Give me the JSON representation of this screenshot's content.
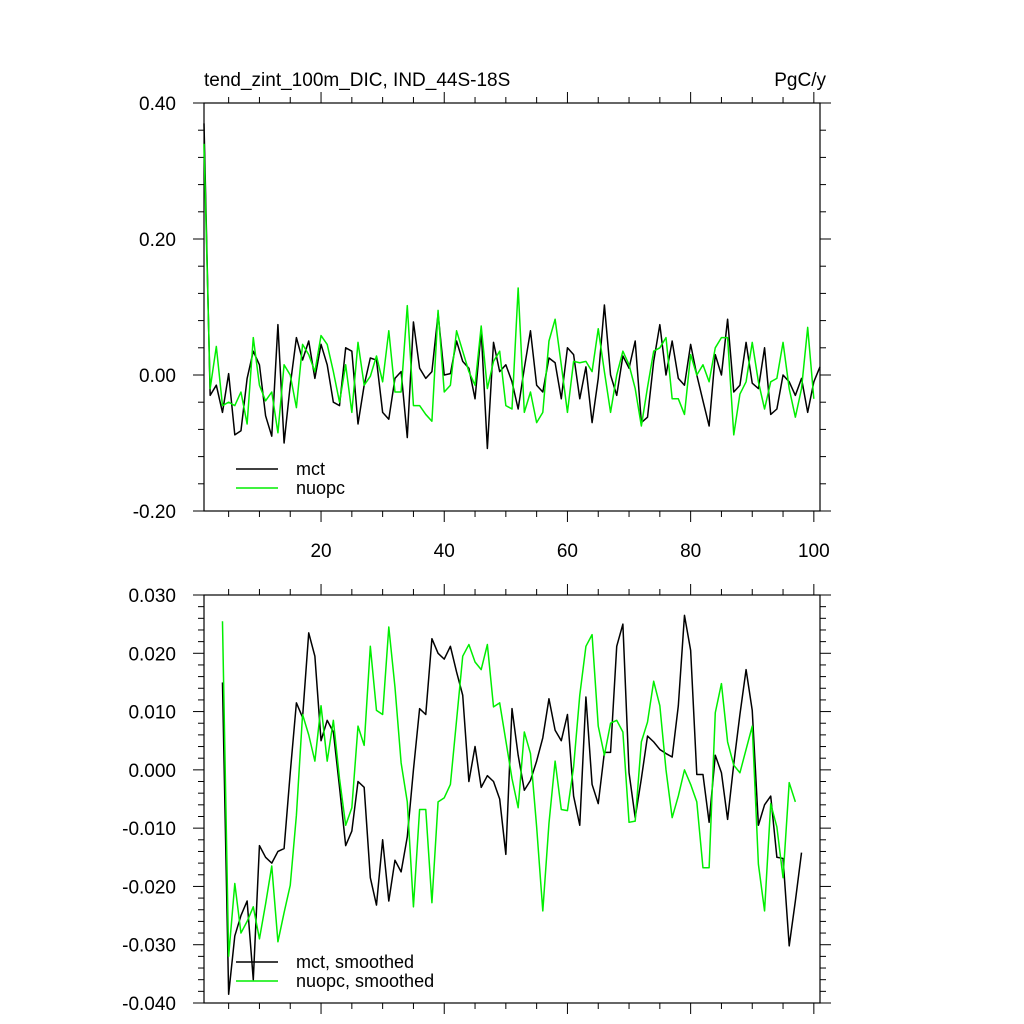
{
  "chart_data": [
    {
      "type": "line",
      "title_left": "tend_zint_100m_DIC, IND_44S-18S",
      "title_right": "PgC/y",
      "xlim": [
        1,
        101
      ],
      "ylim": [
        -0.2,
        0.4
      ],
      "x_ticks": [
        20,
        40,
        60,
        80,
        100
      ],
      "x_tick_labels": [
        "20",
        "40",
        "60",
        "80",
        "100"
      ],
      "y_ticks": [
        -0.2,
        0,
        0.2,
        0.4
      ],
      "y_tick_labels": [
        "-0.20",
        "0.00",
        "0.20",
        "0.40"
      ],
      "legend_position": "lower-left",
      "series": [
        {
          "name": "mct",
          "color": "#000000",
          "x_start": 1,
          "values": [
            0.37,
            -0.03,
            -0.015,
            -0.055,
            0.002,
            -0.088,
            -0.082,
            -0.005,
            0.035,
            0.015,
            -0.06,
            -0.09,
            0.074,
            -0.1,
            -0.015,
            0.055,
            0.022,
            0.05,
            -0.005,
            0.045,
            0.015,
            -0.04,
            -0.045,
            0.04,
            0.035,
            -0.072,
            -0.015,
            0.025,
            0.022,
            -0.055,
            -0.065,
            -0.005,
            0.005,
            -0.092,
            0.078,
            0.01,
            -0.005,
            0.005,
            0.09,
            0.0,
            0.002,
            0.05,
            0.02,
            0.01,
            -0.035,
            0.065,
            -0.108,
            0.048,
            0.005,
            0.015,
            -0.01,
            -0.05,
            0.01,
            0.065,
            -0.015,
            -0.025,
            0.025,
            0.018,
            -0.035,
            0.04,
            0.03,
            -0.035,
            0.012,
            -0.07,
            -0.005,
            0.103,
            0.0,
            -0.03,
            0.028,
            0.01,
            0.05,
            -0.07,
            -0.062,
            0.02,
            0.074,
            0.0,
            0.05,
            -0.005,
            -0.015,
            0.045,
            0.0,
            -0.038,
            -0.075,
            0.03,
            0.0,
            0.082,
            -0.025,
            -0.015,
            0.048,
            -0.012,
            -0.02,
            0.04,
            -0.058,
            -0.05,
            0.0,
            -0.01,
            -0.03,
            -0.005,
            -0.055,
            -0.01,
            0.012
          ]
        },
        {
          "name": "nuopc",
          "color": "#00ee00",
          "x_start": 1,
          "values": [
            0.34,
            -0.02,
            0.042,
            -0.045,
            -0.04,
            -0.045,
            -0.025,
            -0.072,
            0.055,
            -0.015,
            -0.038,
            -0.025,
            -0.085,
            0.015,
            0.0,
            -0.048,
            0.045,
            0.03,
            0.005,
            0.058,
            0.045,
            0.005,
            -0.04,
            0.015,
            -0.055,
            0.048,
            -0.015,
            -0.002,
            0.028,
            -0.01,
            0.065,
            -0.025,
            -0.025,
            0.102,
            -0.045,
            -0.045,
            -0.058,
            -0.068,
            0.095,
            -0.025,
            -0.015,
            0.065,
            0.035,
            0.005,
            -0.015,
            0.072,
            -0.02,
            0.02,
            0.035,
            -0.045,
            -0.05,
            0.128,
            -0.055,
            -0.025,
            -0.07,
            -0.055,
            0.05,
            0.082,
            0.015,
            -0.055,
            0.02,
            0.018,
            0.02,
            0.005,
            0.068,
            0.005,
            -0.055,
            0.0,
            0.035,
            0.015,
            -0.02,
            -0.075,
            -0.018,
            0.035,
            0.04,
            0.055,
            -0.035,
            -0.035,
            -0.058,
            0.03,
            0.0,
            0.015,
            -0.01,
            0.04,
            0.055,
            0.055,
            -0.088,
            -0.028,
            -0.01,
            0.048,
            -0.01,
            -0.05,
            -0.01,
            -0.005,
            0.048,
            -0.02,
            -0.062,
            -0.02,
            0.07,
            -0.035
          ]
        }
      ]
    },
    {
      "type": "line",
      "xlim": [
        1,
        101
      ],
      "ylim": [
        -0.04,
        0.03
      ],
      "x_ticks": [
        20,
        40,
        60,
        80,
        100
      ],
      "y_ticks": [
        -0.04,
        -0.03,
        -0.02,
        -0.01,
        0,
        0.01,
        0.02,
        0.03
      ],
      "y_tick_labels": [
        "-0.040",
        "-0.030",
        "-0.020",
        "-0.010",
        "0.000",
        "0.010",
        "0.020",
        "0.030"
      ],
      "legend_position": "lower-left",
      "series": [
        {
          "name": "mct, smoothed",
          "color": "#000000",
          "x_start": 4,
          "values": [
            0.015,
            -0.0385,
            -0.0285,
            -0.025,
            -0.0225,
            -0.036,
            -0.013,
            -0.015,
            -0.016,
            -0.014,
            -0.0135,
            -0.0005,
            0.0115,
            0.009,
            0.0235,
            0.0195,
            0.005,
            0.0085,
            0.0065,
            -0.003,
            -0.013,
            -0.0105,
            -0.002,
            -0.003,
            -0.0185,
            -0.0232,
            -0.012,
            -0.0225,
            -0.0155,
            -0.0175,
            -0.0115,
            0.0,
            0.0105,
            0.0095,
            0.0225,
            0.02,
            0.019,
            0.0212,
            0.0168,
            0.0128,
            -0.002,
            0.004,
            -0.003,
            -0.001,
            -0.002,
            -0.005,
            -0.0145,
            0.0105,
            0.0025,
            -0.0035,
            -0.0018,
            0.0015,
            0.0055,
            0.0122,
            0.0068,
            0.005,
            0.0095,
            -0.0045,
            -0.0095,
            0.0125,
            -0.0025,
            -0.0058,
            0.003,
            0.003,
            0.0212,
            0.025,
            -0.0005,
            -0.0082,
            -0.0015,
            0.0058,
            0.0048,
            0.0035,
            0.0028,
            0.0022,
            0.011,
            0.0265,
            0.0205,
            -0.0008,
            -0.0008,
            -0.009,
            0.0025,
            -0.0005,
            -0.0085,
            0.001,
            0.0095,
            0.0172,
            0.0102,
            -0.0095,
            -0.006,
            -0.0045,
            -0.015,
            -0.0152,
            -0.0302,
            -0.0225,
            -0.0142
          ]
        },
        {
          "name": "nuopc, smoothed",
          "color": "#00ee00",
          "x_start": 4,
          "values": [
            0.0255,
            -0.032,
            -0.0195,
            -0.028,
            -0.026,
            -0.0235,
            -0.029,
            -0.023,
            -0.0165,
            -0.0295,
            -0.0245,
            -0.0198,
            -0.0078,
            0.0095,
            0.006,
            0.0015,
            0.011,
            0.0015,
            0.0085,
            -0.0015,
            -0.0095,
            -0.0065,
            0.0075,
            0.0042,
            0.0212,
            0.0102,
            0.0095,
            0.0245,
            0.0142,
            0.0012,
            -0.0055,
            -0.0235,
            -0.0068,
            -0.0068,
            -0.0228,
            -0.0055,
            -0.0048,
            -0.0025,
            0.0085,
            0.0195,
            0.0215,
            0.0185,
            0.0172,
            0.0215,
            0.0108,
            0.0115,
            0.005,
            -0.0015,
            -0.0065,
            0.0065,
            0.0028,
            -0.0098,
            -0.0242,
            -0.0092,
            0.0015,
            -0.0068,
            -0.007,
            0.0005,
            0.0128,
            0.0212,
            0.0232,
            0.0075,
            0.0025,
            0.008,
            0.0085,
            0.0065,
            -0.009,
            -0.0088,
            0.0048,
            0.0082,
            0.0152,
            0.011,
            0.0,
            -0.0082,
            -0.0045,
            0.0,
            -0.0025,
            -0.0055,
            -0.0168,
            -0.0168,
            0.0098,
            0.0148,
            0.0048,
            0.0008,
            -0.0005,
            0.0035,
            0.0075,
            -0.0162,
            -0.0242,
            -0.0058,
            -0.0098,
            -0.0185,
            -0.0022,
            -0.0055
          ]
        }
      ]
    }
  ]
}
